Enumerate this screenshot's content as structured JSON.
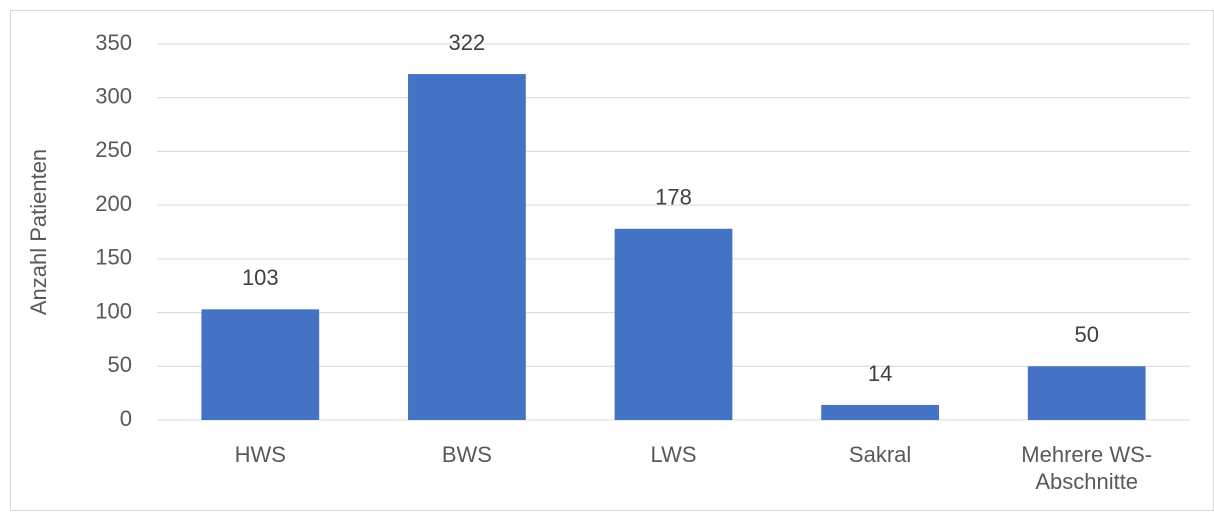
{
  "chart_data": {
    "type": "bar",
    "y_label": "Anzahl Patienten",
    "categories": [
      "HWS",
      "BWS",
      "LWS",
      "Sakral",
      "Mehrere WS-Abschnitte"
    ],
    "values": [
      103,
      322,
      178,
      14,
      50
    ],
    "color": "#4472c4",
    "ylim": [
      0,
      350
    ],
    "yticks": [
      0,
      50,
      100,
      150,
      200,
      250,
      300,
      350
    ],
    "grid": true
  }
}
